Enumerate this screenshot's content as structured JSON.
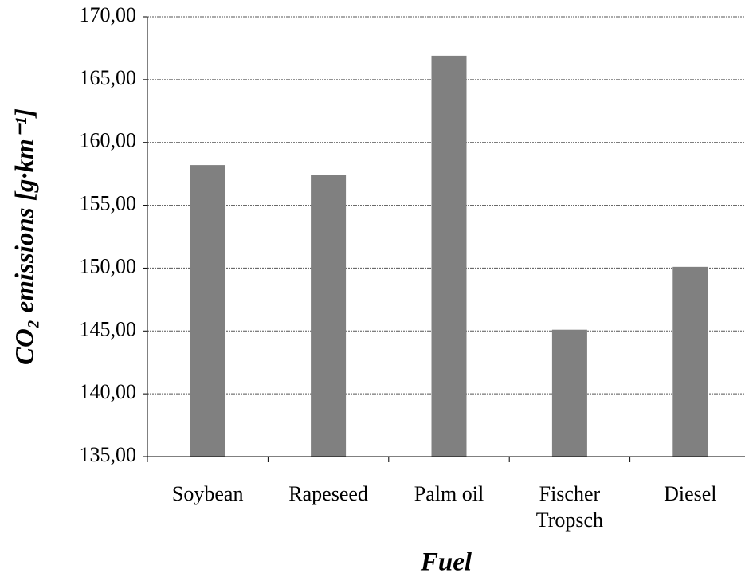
{
  "chart_data": {
    "type": "bar",
    "x_label": "Fuel",
    "y_label": "CO₂ emissions [g·km⁻¹]",
    "categories": [
      "Soybean",
      "Rapeseed",
      "Palm oil",
      "Fischer\nTropsch",
      "Diesel"
    ],
    "values": [
      158.2,
      157.4,
      166.9,
      145.1,
      150.1
    ],
    "color": "#808080",
    "ylim": [
      135,
      170
    ],
    "yticks": [
      {
        "value": 135,
        "label": "135,00"
      },
      {
        "value": 140,
        "label": "140,00"
      },
      {
        "value": 145,
        "label": "145,00"
      },
      {
        "value": 150,
        "label": "150,00"
      },
      {
        "value": 155,
        "label": "155,00"
      },
      {
        "value": 160,
        "label": "160,00"
      },
      {
        "value": 165,
        "label": "165,00"
      },
      {
        "value": 170,
        "label": "170,00"
      }
    ],
    "grid": true
  }
}
